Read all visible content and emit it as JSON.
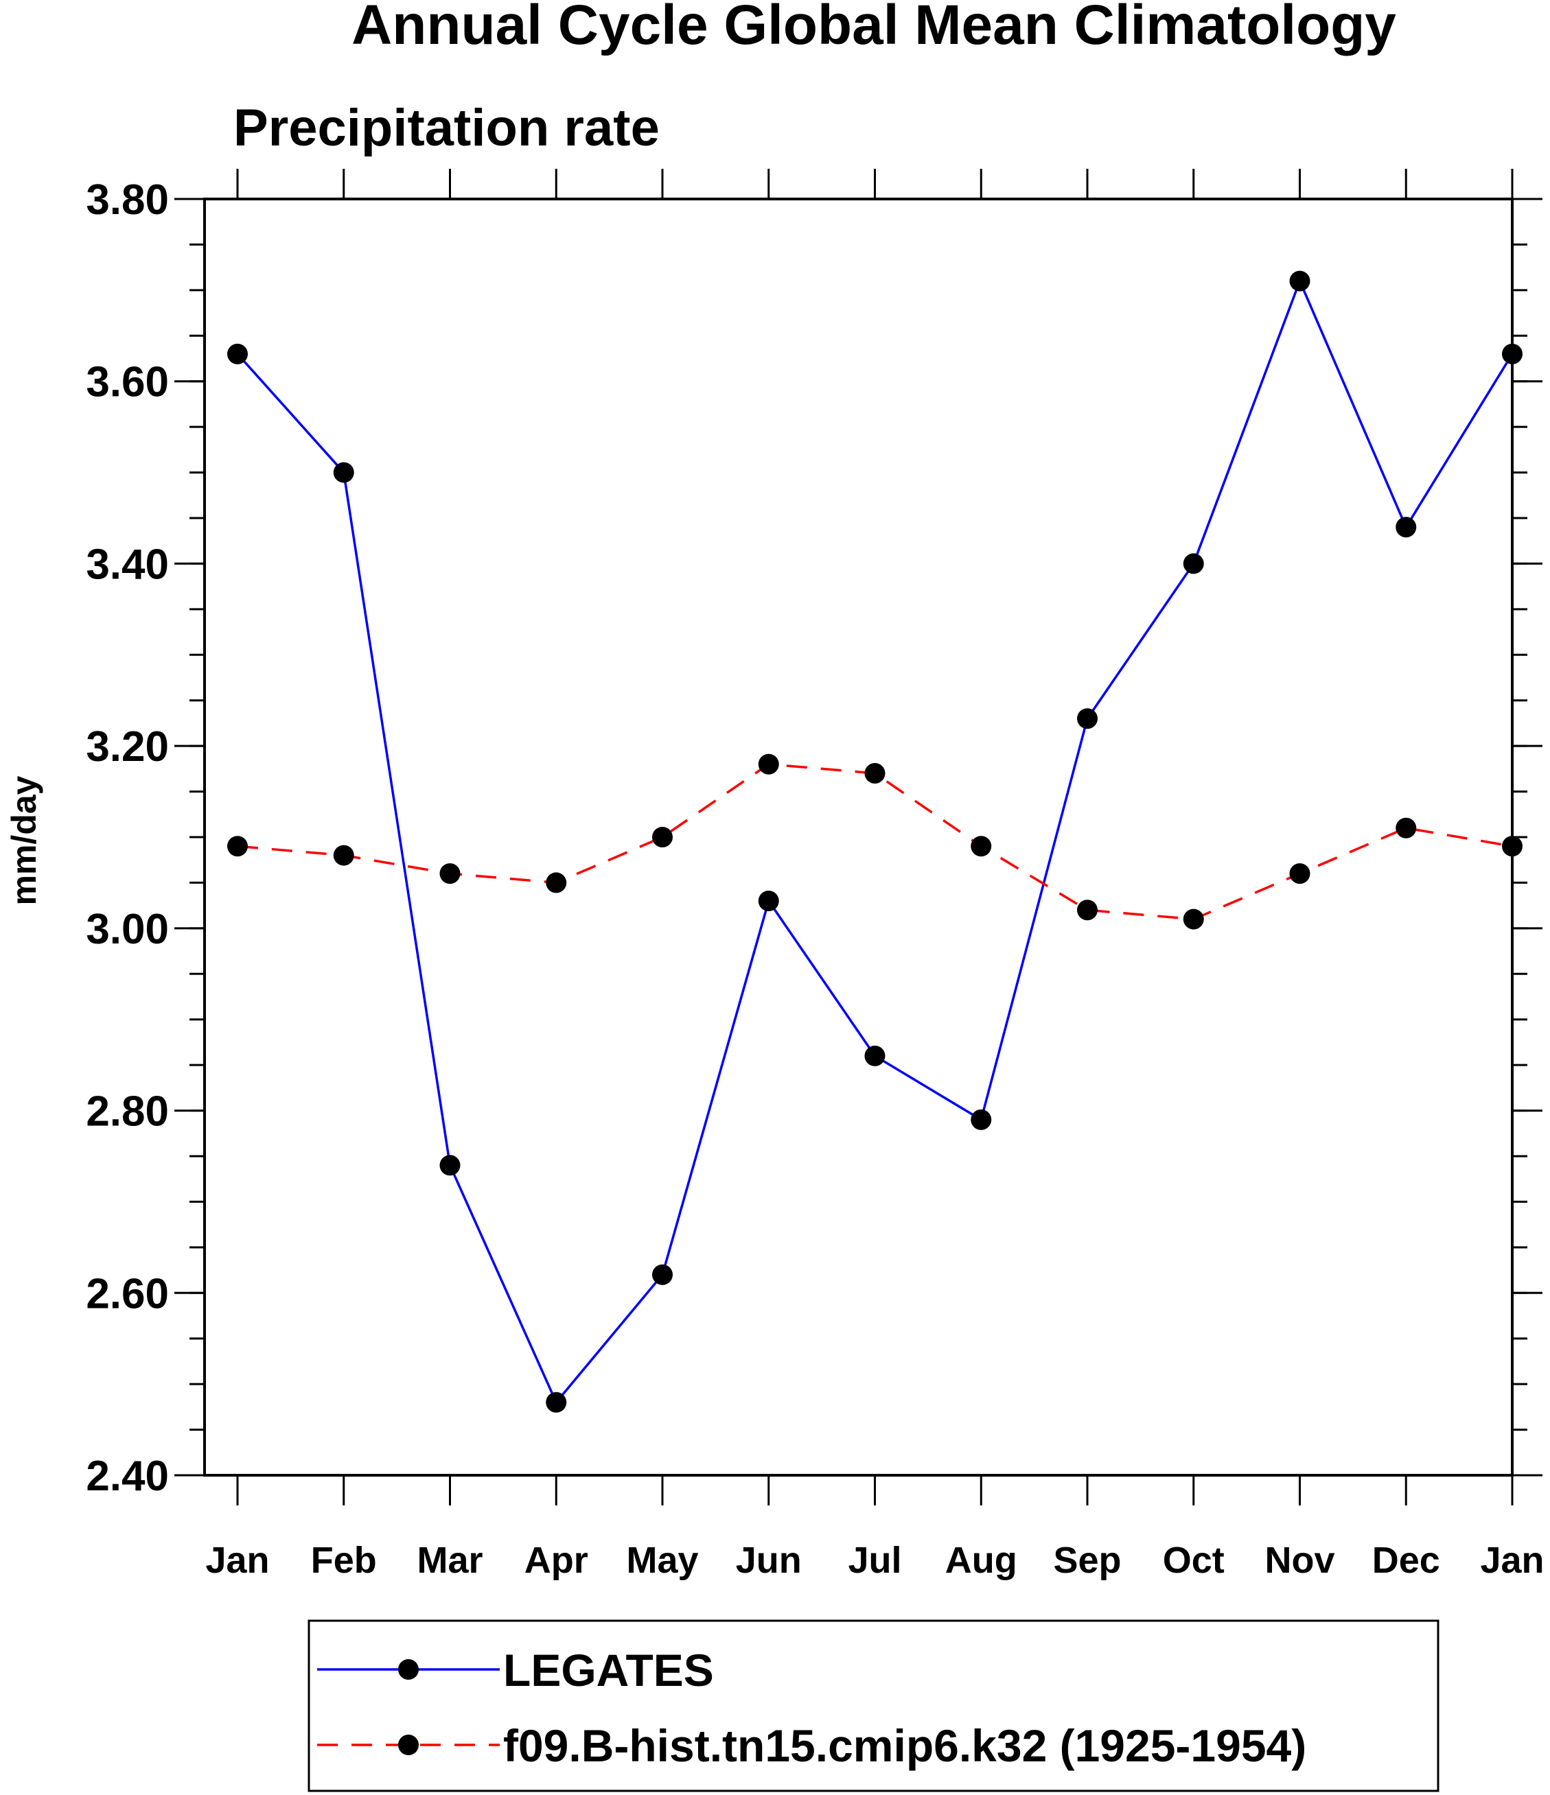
{
  "chart_data": {
    "type": "line",
    "title": "Annual Cycle Global Mean Climatology",
    "subtitle": "Precipitation rate",
    "xlabel": "",
    "ylabel": "mm/day",
    "categories": [
      "Jan",
      "Feb",
      "Mar",
      "Apr",
      "May",
      "Jun",
      "Jul",
      "Aug",
      "Sep",
      "Oct",
      "Nov",
      "Dec",
      "Jan"
    ],
    "ylim": [
      2.4,
      3.8
    ],
    "yticks": [
      "2.40",
      "2.60",
      "2.80",
      "3.00",
      "3.20",
      "3.40",
      "3.60",
      "3.80"
    ],
    "ytick_values": [
      2.4,
      2.6,
      2.8,
      3.0,
      3.2,
      3.4,
      3.6,
      3.8
    ],
    "grid": false,
    "legend_position": "bottom",
    "series": [
      {
        "name": "LEGATES",
        "color": "#0000ff",
        "line_style": "solid",
        "marker": "filled-circle",
        "values": [
          3.63,
          3.5,
          2.74,
          2.48,
          2.62,
          3.03,
          2.86,
          2.79,
          3.23,
          3.4,
          3.71,
          3.44,
          3.63
        ]
      },
      {
        "name": "f09.B-hist.tn15.cmip6.k32 (1925-1954)",
        "color": "#ff0000",
        "line_style": "dashed",
        "marker": "filled-circle",
        "values": [
          3.09,
          3.08,
          3.06,
          3.05,
          3.1,
          3.18,
          3.17,
          3.09,
          3.02,
          3.01,
          3.06,
          3.11,
          3.09
        ]
      }
    ]
  }
}
